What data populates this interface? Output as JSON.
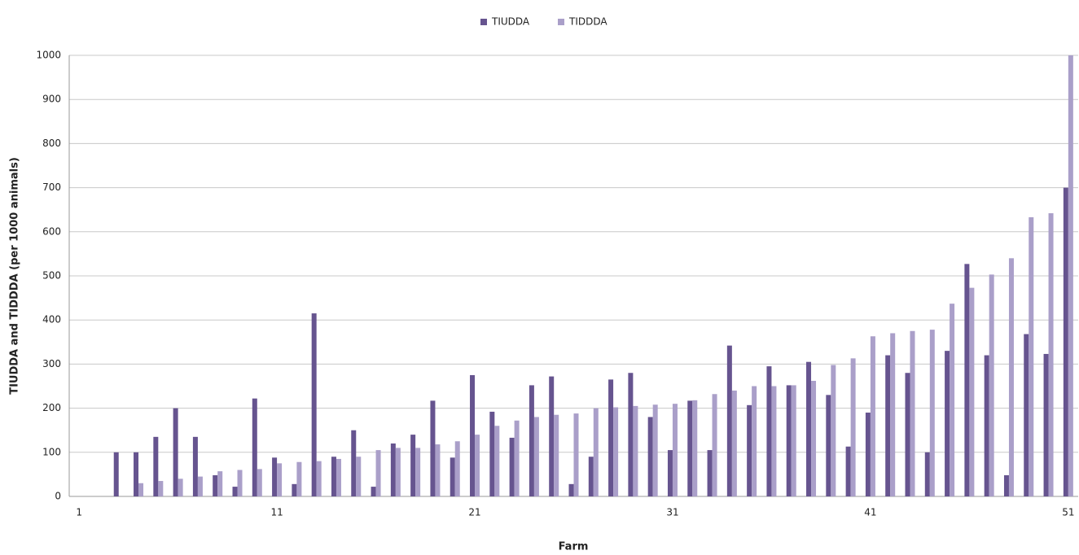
{
  "chart_data": {
    "type": "bar",
    "x_label": "Farm",
    "y_label": "TIUDDA and TIDDDA (per 1000 animals)",
    "categories": [
      "1",
      null,
      null,
      null,
      null,
      null,
      null,
      null,
      null,
      null,
      "11",
      null,
      null,
      null,
      null,
      null,
      null,
      null,
      null,
      null,
      "21",
      null,
      null,
      null,
      null,
      null,
      null,
      null,
      null,
      null,
      "31",
      null,
      null,
      null,
      null,
      null,
      null,
      null,
      null,
      null,
      "41",
      null,
      null,
      null,
      null,
      null,
      null,
      null,
      null,
      null,
      "51"
    ],
    "series": [
      {
        "name": "TIUDDA",
        "color": "#66548f",
        "values": [
          0,
          0,
          100,
          100,
          135,
          200,
          135,
          48,
          22,
          222,
          88,
          28,
          415,
          90,
          150,
          22,
          120,
          140,
          217,
          88,
          275,
          192,
          133,
          252,
          272,
          28,
          90,
          265,
          280,
          180,
          105,
          217,
          105,
          342,
          207,
          295,
          252,
          305,
          230,
          113,
          190,
          320,
          280,
          100,
          330,
          527,
          320,
          48,
          368,
          323,
          700
        ]
      },
      {
        "name": "TIDDDA",
        "color": "#aa9fc9",
        "values": [
          0,
          0,
          0,
          30,
          35,
          40,
          45,
          57,
          60,
          62,
          75,
          78,
          80,
          85,
          90,
          105,
          110,
          110,
          118,
          125,
          140,
          160,
          172,
          180,
          185,
          188,
          200,
          202,
          205,
          208,
          210,
          218,
          232,
          240,
          250,
          250,
          252,
          262,
          298,
          313,
          363,
          370,
          375,
          378,
          437,
          473,
          503,
          540,
          633,
          642,
          1000
        ]
      }
    ],
    "ylim": [
      0,
      1000
    ],
    "yticks": [
      0,
      100,
      200,
      300,
      400,
      500,
      600,
      700,
      800,
      900,
      1000
    ],
    "grid": true,
    "legend": "top"
  }
}
